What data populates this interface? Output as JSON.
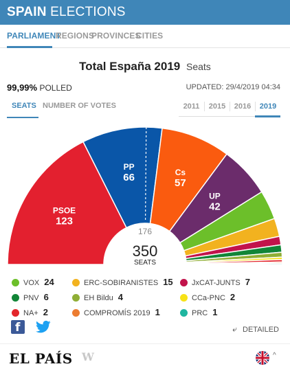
{
  "header": {
    "brand": "SPAIN",
    "title": "ELECTIONS"
  },
  "nav": {
    "items": [
      "PARLIAMENT",
      "REGIONS",
      "PROVINCES",
      "CITIES"
    ],
    "active": "PARLIAMENT"
  },
  "title": {
    "main": "Total España 2019",
    "sub": "Seats"
  },
  "status": {
    "polled_value": "99,99%",
    "polled_label": "POLLED",
    "updated": "UPDATED: 29/4/2019 04:34"
  },
  "toggle": {
    "seats": "SEATS",
    "votes": "NUMBER OF VOTES"
  },
  "years": [
    "2011",
    "2015",
    "2016",
    "2019"
  ],
  "active_year": "2019",
  "chart_data": {
    "type": "pie",
    "variant": "half-donut parliament",
    "total": 350,
    "total_label": "SEATS",
    "majority": 176,
    "parties": [
      {
        "name": "PSOE",
        "seats": 123,
        "color": "#e3202f",
        "label_color": "#ffffff"
      },
      {
        "name": "PP",
        "seats": 66,
        "color": "#0a56a8",
        "label_color": "#ffffff"
      },
      {
        "name": "Cs",
        "seats": 57,
        "color": "#fa5b0f",
        "label_color": "#ffffff"
      },
      {
        "name": "UP",
        "seats": 42,
        "color": "#6b2c6b",
        "label_color": "#ffffff"
      },
      {
        "name": "VOX",
        "seats": 24,
        "color": "#6cbf2a"
      },
      {
        "name": "ERC-SOBIRANISTES",
        "seats": 15,
        "color": "#f2b21f"
      },
      {
        "name": "JxCAT-JUNTS",
        "seats": 7,
        "color": "#c2134b"
      },
      {
        "name": "PNV",
        "seats": 6,
        "color": "#118537"
      },
      {
        "name": "EH Bildu",
        "seats": 4,
        "color": "#8fae35"
      },
      {
        "name": "CCa-PNC",
        "seats": 2,
        "color": "#f7e217"
      },
      {
        "name": "NA+",
        "seats": 2,
        "color": "#e3262b"
      },
      {
        "name": "COMPROMÍS 2019",
        "seats": 1,
        "color": "#ec7c31"
      },
      {
        "name": "PRC",
        "seats": 1,
        "color": "#1fb6a0"
      }
    ]
  },
  "footer": {
    "detailed": "DETAILED",
    "logo": "EL PAÍS",
    "wlogo": "W"
  },
  "icons": {
    "facebook": "facebook-icon",
    "twitter": "twitter-icon",
    "share": "share-arrow-icon",
    "flag": "uk-flag-icon",
    "caret": "chevron-up-icon"
  }
}
